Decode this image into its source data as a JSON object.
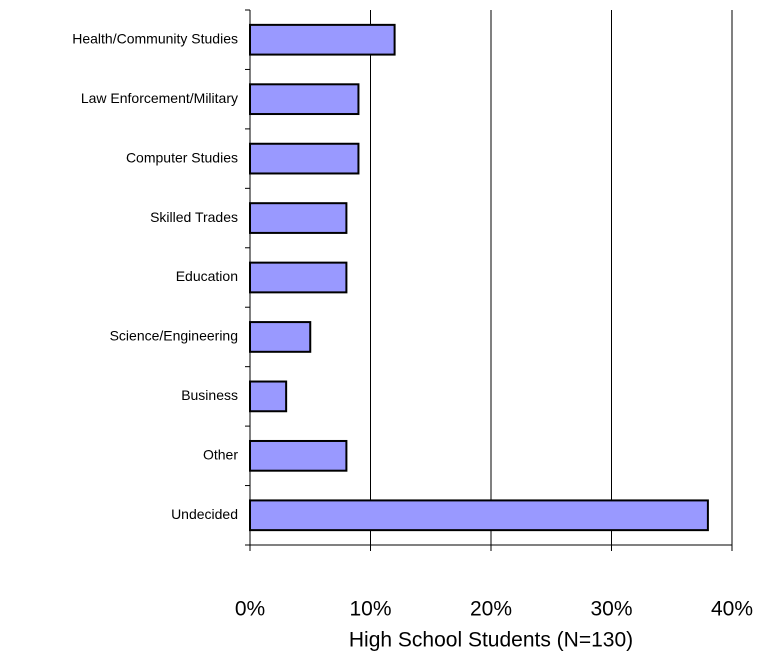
{
  "chart_data": {
    "type": "bar",
    "orientation": "horizontal",
    "categories": [
      "Health/Community Studies",
      "Law Enforcement/Military",
      "Computer Studies",
      "Skilled Trades",
      "Education",
      "Science/Engineering",
      "Business",
      "Other",
      "Undecided"
    ],
    "values": [
      12,
      9,
      9,
      8,
      8,
      5,
      3,
      8,
      38
    ],
    "color": "#9999ff",
    "xlabel": "High School Students (N=130)",
    "xlim": [
      0,
      40
    ],
    "xticks": [
      {
        "value": 0,
        "label": "0%"
      },
      {
        "value": 10,
        "label": "10%"
      },
      {
        "value": 20,
        "label": "20%"
      },
      {
        "value": 30,
        "label": "30%"
      },
      {
        "value": 40,
        "label": "40%"
      }
    ],
    "grid": true
  }
}
